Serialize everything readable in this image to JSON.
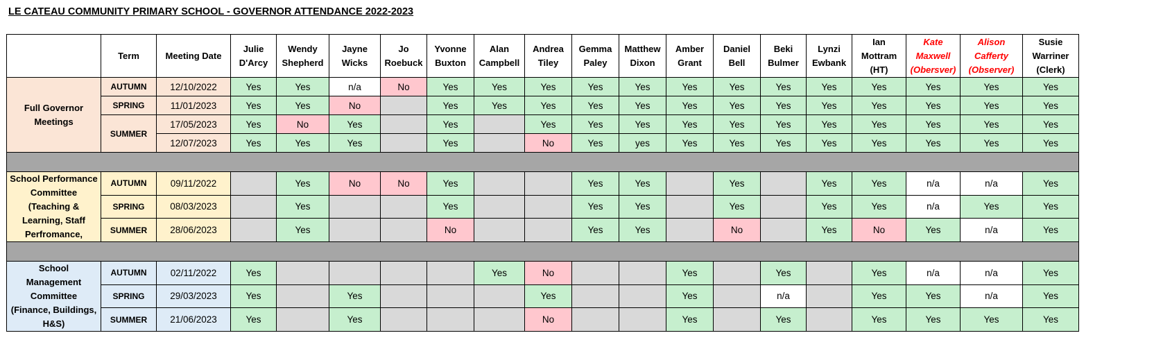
{
  "title": "LE CATEAU COMMUNITY PRIMARY SCHOOL - GOVERNOR ATTENDANCE 2022-2023",
  "headers": {
    "term": "Term",
    "meeting_date": "Meeting Date",
    "people": [
      {
        "line1": "Julie",
        "line2": "D'Arcy",
        "observer": false
      },
      {
        "line1": "Wendy",
        "line2": "Shepherd",
        "observer": false
      },
      {
        "line1": "Jayne",
        "line2": "Wicks",
        "observer": false
      },
      {
        "line1": "Jo",
        "line2": "Roebuck",
        "observer": false
      },
      {
        "line1": "Yvonne",
        "line2": "Buxton",
        "observer": false
      },
      {
        "line1": "Alan",
        "line2": "Campbell",
        "observer": false
      },
      {
        "line1": "Andrea",
        "line2": "Tiley",
        "observer": false
      },
      {
        "line1": "Gemma",
        "line2": "Paley",
        "observer": false
      },
      {
        "line1": "Matthew",
        "line2": "Dixon",
        "observer": false
      },
      {
        "line1": "Amber",
        "line2": "Grant",
        "observer": false
      },
      {
        "line1": "Daniel",
        "line2": "Bell",
        "observer": false
      },
      {
        "line1": "Beki",
        "line2": "Bulmer",
        "observer": false
      },
      {
        "line1": "Lynzi",
        "line2": "Ewbank",
        "observer": false
      },
      {
        "line1": "Ian",
        "line2": "Mottram",
        "line3": "(HT)",
        "observer": false
      },
      {
        "line1": "Kate",
        "line2": "Maxwell",
        "line3": "(Obersver)",
        "observer": true
      },
      {
        "line1": "Alison",
        "line2": "Cafferty",
        "line3": "(Observer)",
        "observer": true
      },
      {
        "line1": "Susie",
        "line2": "Warriner",
        "line3": "(Clerk)",
        "observer": false
      }
    ]
  },
  "groups": [
    {
      "name_lines": [
        "Full Governor",
        "Meetings"
      ],
      "style": "g1",
      "terms": [
        {
          "term": "AUTUMN",
          "meetings": [
            {
              "date": "12/10/2022",
              "cells": [
                "Yes",
                "Yes",
                "n/a",
                "No",
                "Yes",
                "Yes",
                "Yes",
                "Yes",
                "Yes",
                "Yes",
                "Yes",
                "Yes",
                "Yes",
                "Yes",
                "Yes",
                "Yes",
                "Yes"
              ]
            }
          ]
        },
        {
          "term": "SPRING",
          "meetings": [
            {
              "date": "11/01/2023",
              "cells": [
                "Yes",
                "Yes",
                "No",
                "",
                "Yes",
                "Yes",
                "Yes",
                "Yes",
                "Yes",
                "Yes",
                "Yes",
                "Yes",
                "Yes",
                "Yes",
                "Yes",
                "Yes",
                "Yes"
              ]
            }
          ]
        },
        {
          "term": "SUMMER",
          "meetings": [
            {
              "date": "17/05/2023",
              "cells": [
                "Yes",
                "No",
                "Yes",
                "",
                "Yes",
                "",
                "Yes",
                "Yes",
                "Yes",
                "Yes",
                "Yes",
                "Yes",
                "Yes",
                "Yes",
                "Yes",
                "Yes",
                "Yes"
              ]
            },
            {
              "date": "12/07/2023",
              "cells": [
                "Yes",
                "Yes",
                "Yes",
                "",
                "Yes",
                "",
                "No",
                "Yes",
                "yes",
                "Yes",
                "Yes",
                "Yes",
                "Yes",
                "Yes",
                "Yes",
                "Yes",
                "Yes"
              ]
            }
          ]
        }
      ]
    },
    {
      "name_lines": [
        "School Performance",
        "Committee",
        "(Teaching &",
        "Learning, Staff",
        "Perfromance,"
      ],
      "style": "g2",
      "terms": [
        {
          "term": "AUTUMN",
          "meetings": [
            {
              "date": "09/11/2022",
              "cells": [
                "",
                "Yes",
                "No",
                "No",
                "Yes",
                "",
                "",
                "Yes",
                "Yes",
                "",
                "Yes",
                "",
                "Yes",
                "Yes",
                "n/a",
                "n/a",
                "Yes"
              ]
            }
          ]
        },
        {
          "term": "SPRING",
          "meetings": [
            {
              "date": "08/03/2023",
              "cells": [
                "",
                "Yes",
                "",
                "",
                "Yes",
                "",
                "",
                "Yes",
                "Yes",
                "",
                "Yes",
                "",
                "Yes",
                "Yes",
                "n/a",
                "Yes",
                "Yes"
              ]
            }
          ]
        },
        {
          "term": "SUMMER",
          "meetings": [
            {
              "date": "28/06/2023",
              "cells": [
                "",
                "Yes",
                "",
                "",
                "No",
                "",
                "",
                "Yes",
                "Yes",
                "",
                "No",
                "",
                "Yes",
                "No",
                "Yes",
                "n/a",
                "Yes"
              ]
            }
          ]
        }
      ]
    },
    {
      "name_lines": [
        "School",
        "Management",
        "Committee",
        "(Finance, Buildings,",
        "H&S)"
      ],
      "style": "g3",
      "terms": [
        {
          "term": "AUTUMN",
          "meetings": [
            {
              "date": "02/11/2022",
              "cells": [
                "Yes",
                "",
                "",
                "",
                "",
                "Yes",
                "No",
                "",
                "",
                "Yes",
                "",
                "Yes",
                "",
                "Yes",
                "n/a",
                "n/a",
                "Yes"
              ]
            }
          ]
        },
        {
          "term": "SPRING",
          "meetings": [
            {
              "date": "29/03/2023",
              "cells": [
                "Yes",
                "",
                "Yes",
                "",
                "",
                "",
                "Yes",
                "",
                "",
                "Yes",
                "",
                "n/a",
                "",
                "Yes",
                "Yes",
                "n/a",
                "Yes"
              ]
            }
          ]
        },
        {
          "term": "SUMMER",
          "meetings": [
            {
              "date": "21/06/2023",
              "cells": [
                "Yes",
                "",
                "Yes",
                "",
                "",
                "",
                "No",
                "",
                "",
                "Yes",
                "",
                "Yes",
                "",
                "Yes",
                "Yes",
                "Yes",
                "Yes"
              ]
            }
          ]
        }
      ]
    }
  ]
}
